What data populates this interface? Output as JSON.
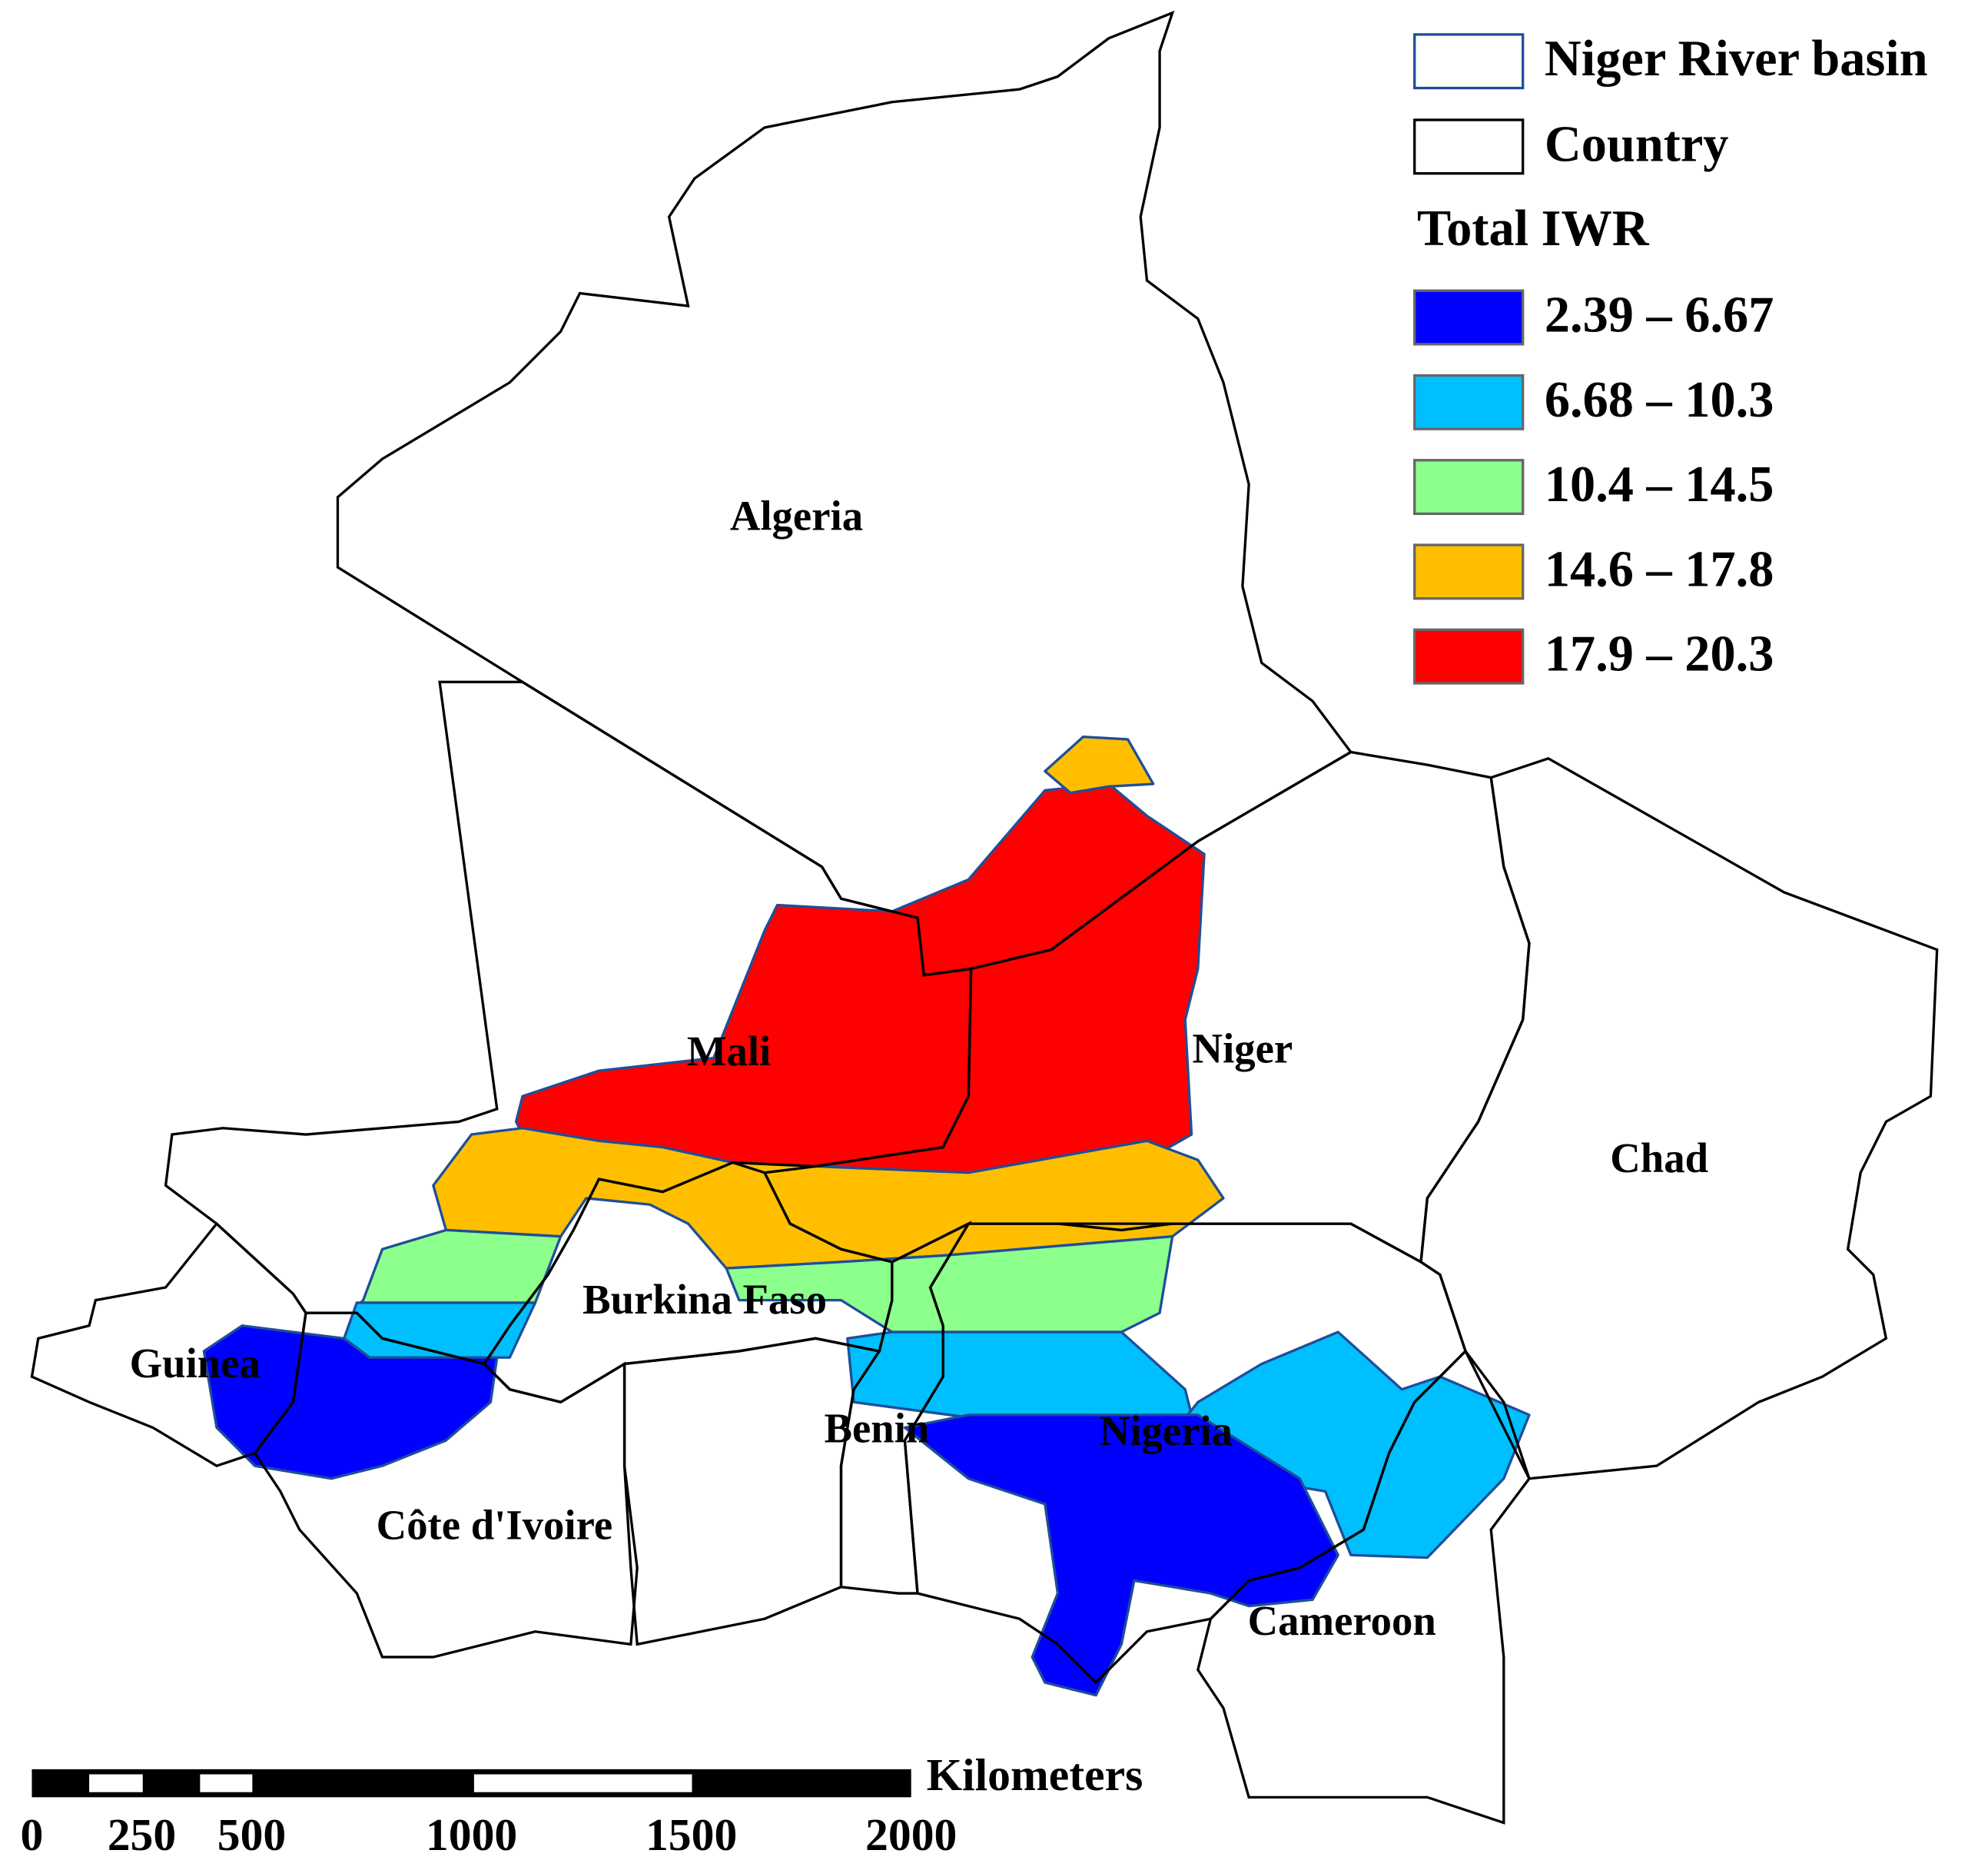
{
  "legend": {
    "layers": [
      {
        "label": "Niger River basin",
        "stroke": "#1f4e99"
      },
      {
        "label": "Country",
        "stroke": "#000000"
      }
    ],
    "title": "Total IWR",
    "classes": [
      {
        "label": "2.39 – 6.67",
        "color": "#0000ff"
      },
      {
        "label": "6.68 – 10.3",
        "color": "#00bfff"
      },
      {
        "label": "10.4 – 14.5",
        "color": "#8cff8c"
      },
      {
        "label": "14.6 – 17.8",
        "color": "#ffbf00"
      },
      {
        "label": "17.9 – 20.3",
        "color": "#ff0000"
      }
    ]
  },
  "countries": [
    {
      "label": "Algeria"
    },
    {
      "label": "Mali"
    },
    {
      "label": "Niger"
    },
    {
      "label": "Chad"
    },
    {
      "label": "Burkina Faso"
    },
    {
      "label": "Guinea"
    },
    {
      "label": "Benin"
    },
    {
      "label": "Nigeria"
    },
    {
      "label": "Côte d'Ivoire"
    },
    {
      "label": "Cameroon"
    }
  ],
  "scale_bar": {
    "unit": "Kilometers",
    "ticks": [
      0,
      250,
      500,
      1000,
      1500,
      2000
    ]
  }
}
